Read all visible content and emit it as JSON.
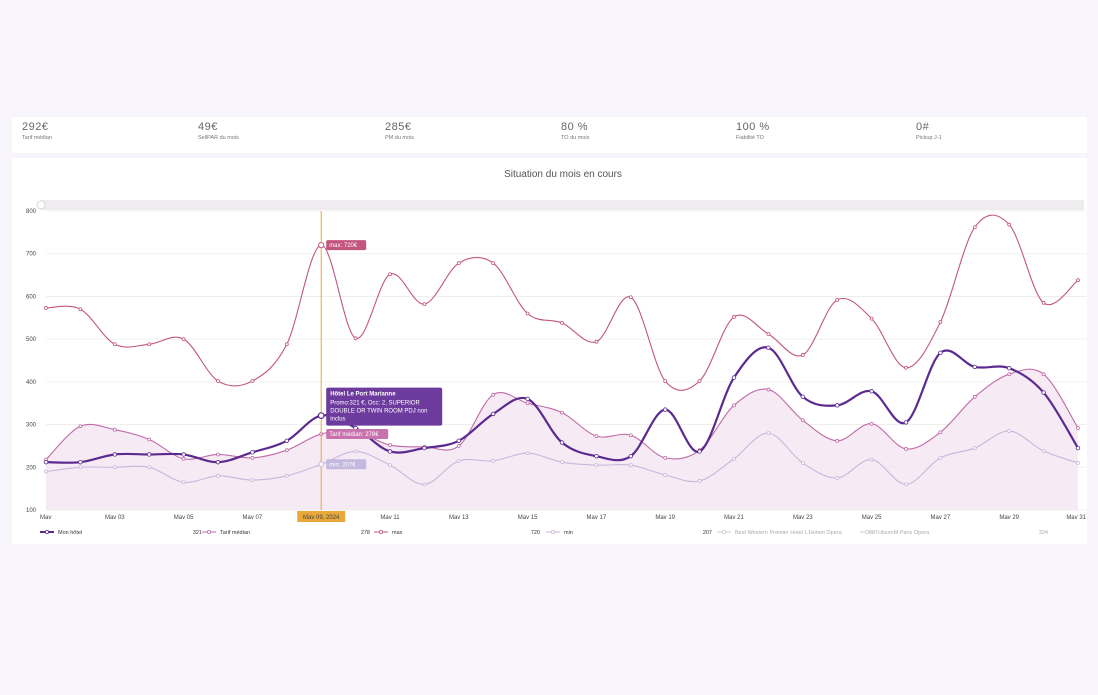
{
  "kpis": [
    {
      "value": "292€",
      "label": "Tarif médian"
    },
    {
      "value": "49€",
      "label": "SellPAR du mois"
    },
    {
      "value": "285€",
      "label": "PM du mois"
    },
    {
      "value": "80 %",
      "label": "TO du mois"
    },
    {
      "value": "100 %",
      "label": "Fiabilité TO"
    },
    {
      "value": "0#",
      "label": "Pickup J-1"
    }
  ],
  "colors": {
    "mon_hotel": "#5b2a90",
    "median": "#c06aa8",
    "max": "#c2557e",
    "min": "#c9b6dd",
    "area": "#f4e6f2",
    "crosshair": "#e8a93a",
    "tooltip_bg": "#6d3a9e"
  },
  "chart_data": {
    "type": "line",
    "title": "Situation du mois en cours",
    "ylim": [
      100,
      800
    ],
    "yticks": [
      100,
      200,
      300,
      400,
      500,
      600,
      700,
      800
    ],
    "x": [
      1,
      2,
      3,
      4,
      5,
      6,
      7,
      8,
      9,
      10,
      11,
      12,
      13,
      14,
      15,
      16,
      17,
      18,
      19,
      20,
      21,
      22,
      23,
      24,
      25,
      26,
      27,
      28,
      29,
      30,
      31
    ],
    "xtick_labels": [
      "Mav",
      "Mav 03",
      "Mav 05",
      "Mav 07",
      "Mav 09, 2024",
      "Mav 11",
      "Mav 13",
      "Mav 15",
      "Mav 17",
      "Mav 19",
      "Mav 21",
      "Mav 23",
      "Mav 25",
      "Mav 27",
      "Mav 29",
      "Mav 31"
    ],
    "series": [
      {
        "name": "Mon hôtel",
        "values": [
          212,
          212,
          230,
          230,
          230,
          212,
          235,
          262,
          321,
          292,
          237,
          245,
          262,
          325,
          360,
          258,
          226,
          226,
          335,
          237,
          410,
          480,
          365,
          345,
          378,
          305,
          468,
          435,
          432,
          375,
          245
        ]
      },
      {
        "name": "Tarif médian",
        "values": [
          218,
          296,
          288,
          265,
          220,
          230,
          222,
          240,
          278,
          283,
          252,
          248,
          250,
          370,
          350,
          328,
          273,
          275,
          222,
          240,
          345,
          382,
          310,
          262,
          302,
          243,
          282,
          365,
          418,
          418,
          292
        ]
      },
      {
        "name": "max",
        "values": [
          573,
          570,
          488,
          488,
          500,
          402,
          402,
          488,
          720,
          502,
          652,
          582,
          678,
          678,
          560,
          538,
          494,
          598,
          402,
          402,
          552,
          512,
          463,
          592,
          548,
          433,
          540,
          762,
          768,
          585,
          638
        ]
      },
      {
        "name": "min",
        "values": [
          190,
          200,
          200,
          200,
          165,
          180,
          170,
          180,
          207,
          237,
          205,
          160,
          215,
          215,
          233,
          212,
          205,
          205,
          182,
          168,
          220,
          280,
          210,
          175,
          218,
          160,
          222,
          245,
          285,
          238,
          210
        ]
      }
    ],
    "legend": [
      {
        "name": "Mon hôtel",
        "value": "321"
      },
      {
        "name": "Tarif médian",
        "value": "278"
      },
      {
        "name": "max",
        "value": "720"
      },
      {
        "name": "min",
        "value": "207"
      },
      {
        "name": "Best Western Premier Hotel L'Horset Opera",
        "value": "207"
      },
      {
        "name": "citizenM Paris Opera",
        "value": "324"
      }
    ],
    "tooltip": {
      "hotel": "Hôtel Le Port Marianne",
      "line1": "Promo:321 €, Occ: 2, SUPERIOR",
      "line2": "DOUBLE OR TWIN ROOM PDJ non",
      "line3": "inclus",
      "median_label": "Tarif médian: 278€",
      "max_label": "max: 720€",
      "min_label": "min: 207€"
    },
    "crosshair_day": 9
  }
}
